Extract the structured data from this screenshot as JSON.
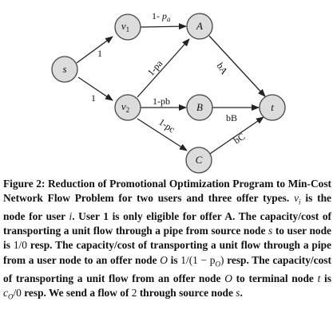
{
  "figure": {
    "nodes": {
      "s": "s",
      "v1_base": "v",
      "v1_sub": "1",
      "v2_base": "v",
      "v2_sub": "2",
      "A": "A",
      "B": "B",
      "C": "C",
      "t": "t"
    },
    "edge_labels": {
      "s_v1": "1",
      "s_v2": "1",
      "v1_A_prefix": "1- ",
      "v1_A_var": "p",
      "v1_A_sub": "a",
      "v2_A": "1-pa",
      "v2_B": "1-pb",
      "v2_C": "1-pc",
      "A_t": "bA",
      "B_t": "bB",
      "C_t": "bC"
    }
  },
  "caption": {
    "lead": "Figure 2: Reduction of Promotional Optimization Program to Min-Cost Network Flow Problem for two users and three offer types.",
    "vi_base": "v",
    "vi_sub": "i",
    "t1": "is the node for user",
    "i": "i",
    "t2": ". User 1 is only eligible for offer A. The capacity/cost of transporting a unit flow through a pipe from source node",
    "s1": "s",
    "t3": "to user node is",
    "m1": "1/0",
    "t4": "resp. The capacity/cost of transporting a unit flow through a pipe from a user node to an offer node",
    "O1": "O",
    "t5": "is",
    "m2": "1/(1 − p",
    "m2_sub": "O",
    "m2_end": ")",
    "t6": "resp. The capacity/cost of transporting a unit flow from an offer node",
    "O2": "O",
    "t7": "to terminal node",
    "tnode": "t",
    "t8": "is",
    "c_base": "c",
    "c_sub": "O",
    "m3": "/0",
    "t9": "resp. We send a flow of",
    "two": "2",
    "t10": "through source node",
    "s2": "s",
    "t11": "."
  }
}
